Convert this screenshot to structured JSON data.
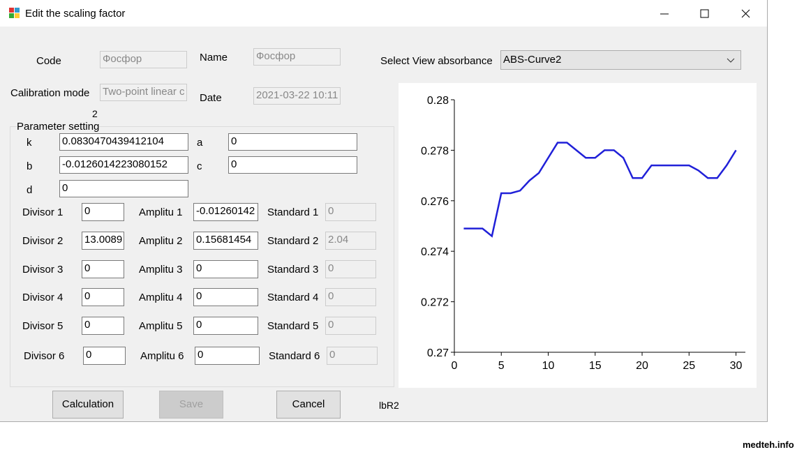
{
  "window": {
    "title": "Edit the scaling factor"
  },
  "form": {
    "code_label": "Code",
    "code_value": "Фосфор",
    "name_label": "Name",
    "name_value": "Фосфор",
    "view_label": "Select View absorbance",
    "view_value": "ABS-Curve2",
    "calibration_label": "Calibration mode",
    "calibration_value": "Two-point linear c",
    "date_label": "Date",
    "date_value": "2021-03-22 10:11",
    "extra_label": "2"
  },
  "params": {
    "group_title": "Parameter setting",
    "k_label": "k",
    "k_value": "0.0830470439412104",
    "a_label": "a",
    "a_value": "0",
    "b_label": "b",
    "b_value": "-0.0126014223080152",
    "c_label": "c",
    "c_value": "0",
    "d_label": "d",
    "d_value": "0",
    "rows": [
      [
        "Divisor 1",
        "0",
        "Amplitu 1",
        "-0.01260142",
        "Standard 1",
        "0"
      ],
      [
        "Divisor 2",
        "13.0089",
        "Amplitu 2",
        "0.15681454",
        "Standard 2",
        "2.04"
      ],
      [
        "Divisor 3",
        "0",
        "Amplitu 3",
        "0",
        "Standard 3",
        "0"
      ],
      [
        "Divisor 4",
        "0",
        "Amplitu 4",
        "0",
        "Standard 4",
        "0"
      ],
      [
        "Divisor 5",
        "0",
        "Amplitu 5",
        "0",
        "Standard 5",
        "0"
      ],
      [
        "Divisor 6",
        "0",
        "Amplitu 6",
        "0",
        "Standard 6",
        "0"
      ]
    ]
  },
  "buttons": {
    "calculate": "Calculation",
    "save": "Save",
    "cancel": "Cancel",
    "result_label": "lbR2"
  },
  "watermark": "medteh.info",
  "chart_data": {
    "type": "line",
    "x": [
      1,
      2,
      3,
      4,
      5,
      6,
      7,
      8,
      9,
      10,
      11,
      12,
      13,
      14,
      15,
      16,
      17,
      18,
      19,
      20,
      21,
      22,
      23,
      24,
      25,
      26,
      27,
      28,
      29,
      30
    ],
    "series": [
      {
        "name": "ABS-Curve2",
        "color": "#2020d8",
        "values": [
          0.2749,
          0.2749,
          0.2749,
          0.2746,
          0.2763,
          0.2763,
          0.2764,
          0.2768,
          0.2771,
          0.2777,
          0.2783,
          0.2783,
          0.278,
          0.2777,
          0.2777,
          0.278,
          0.278,
          0.2777,
          0.2769,
          0.2769,
          0.2774,
          0.2774,
          0.2774,
          0.2774,
          0.2774,
          0.2772,
          0.2769,
          0.2769,
          0.2774,
          0.278
        ]
      }
    ],
    "xlim": [
      0,
      31
    ],
    "xticks": [
      0,
      5,
      10,
      15,
      20,
      25,
      30
    ],
    "ylim": [
      0.27,
      0.28
    ],
    "yticks": [
      0.27,
      0.272,
      0.274,
      0.276,
      0.278,
      0.28
    ]
  }
}
